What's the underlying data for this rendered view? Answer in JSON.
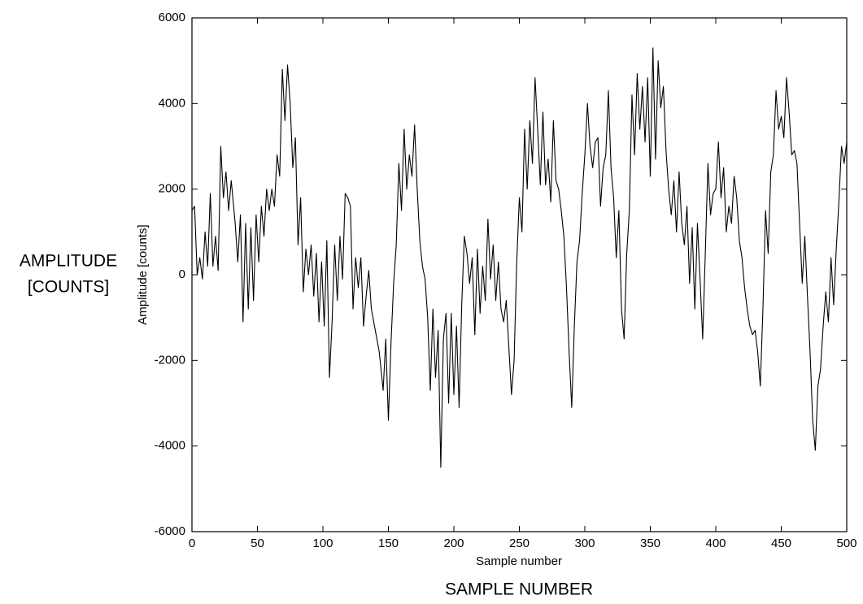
{
  "chart_data": {
    "type": "line",
    "x_label": "Sample number",
    "y_label": "Amplitude [counts]",
    "annotations": [
      "AMPLITUDE",
      "[COUNTS]",
      "SAMPLE NUMBER"
    ],
    "xlim": [
      0,
      500
    ],
    "ylim": [
      -6000,
      6000
    ],
    "xticks": [
      0,
      50,
      100,
      150,
      200,
      250,
      300,
      350,
      400,
      450,
      500
    ],
    "yticks": [
      -6000,
      -4000,
      -2000,
      0,
      2000,
      4000,
      6000
    ],
    "grid": false,
    "series": [
      {
        "color": "#000000",
        "x": [
          0,
          2,
          4,
          6,
          8,
          10,
          12,
          14,
          16,
          18,
          20,
          22,
          24,
          26,
          28,
          30,
          33,
          35,
          37,
          39,
          41,
          43,
          45,
          47,
          49,
          51,
          53,
          55,
          57,
          59,
          61,
          63,
          65,
          67,
          69,
          71,
          73,
          75,
          77,
          79,
          81,
          83,
          85,
          87,
          89,
          91,
          93,
          95,
          97,
          99,
          101,
          103,
          105,
          107,
          109,
          111,
          113,
          115,
          117,
          119,
          121,
          123,
          125,
          127,
          129,
          131,
          133,
          135,
          137,
          140,
          143,
          146,
          148,
          150,
          152,
          154,
          156,
          158,
          160,
          162,
          164,
          166,
          168,
          170,
          172,
          174,
          176,
          178,
          180,
          182,
          184,
          186,
          188,
          190,
          192,
          194,
          196,
          198,
          200,
          202,
          204,
          206,
          208,
          210,
          212,
          214,
          216,
          218,
          220,
          222,
          224,
          226,
          228,
          230,
          232,
          234,
          236,
          238,
          240,
          242,
          244,
          246,
          248,
          250,
          252,
          254,
          256,
          258,
          260,
          262,
          264,
          266,
          268,
          270,
          272,
          274,
          276,
          278,
          280,
          282,
          284,
          286,
          288,
          290,
          292,
          294,
          296,
          298,
          300,
          302,
          304,
          306,
          308,
          310,
          312,
          314,
          316,
          318,
          320,
          322,
          324,
          326,
          328,
          330,
          332,
          334,
          336,
          338,
          340,
          342,
          344,
          346,
          348,
          350,
          352,
          354,
          356,
          358,
          360,
          362,
          364,
          366,
          368,
          370,
          372,
          374,
          376,
          378,
          380,
          382,
          384,
          386,
          388,
          390,
          392,
          394,
          396,
          398,
          400,
          402,
          404,
          406,
          408,
          410,
          412,
          414,
          416,
          418,
          420,
          422,
          424,
          426,
          428,
          430,
          432,
          434,
          436,
          438,
          440,
          442,
          444,
          446,
          448,
          450,
          452,
          454,
          456,
          458,
          460,
          462,
          464,
          466,
          468,
          470,
          472,
          474,
          476,
          478,
          480,
          482,
          484,
          486,
          488,
          490,
          492,
          494,
          496,
          498,
          500
        ],
        "values": [
          1500,
          1600,
          0,
          400,
          -100,
          1000,
          200,
          1900,
          200,
          900,
          100,
          3000,
          1800,
          2400,
          1500,
          2200,
          1200,
          300,
          1400,
          -1100,
          1200,
          -800,
          1100,
          -600,
          1400,
          300,
          1600,
          900,
          2000,
          1500,
          2000,
          1600,
          2800,
          2300,
          4800,
          3600,
          4900,
          4000,
          2500,
          3200,
          700,
          1800,
          -400,
          600,
          0,
          700,
          -500,
          500,
          -1100,
          300,
          -1200,
          800,
          -2400,
          -1100,
          700,
          -600,
          900,
          -100,
          1900,
          1800,
          1600,
          -800,
          400,
          -300,
          400,
          -1200,
          -500,
          100,
          -800,
          -1300,
          -1800,
          -2700,
          -1500,
          -3400,
          -1600,
          -200,
          700,
          2600,
          1500,
          3400,
          2000,
          2800,
          2300,
          3500,
          2000,
          800,
          200,
          -100,
          -1000,
          -2700,
          -800,
          -2400,
          -1300,
          -4500,
          -1500,
          -900,
          -3000,
          -900,
          -2800,
          -1200,
          -3100,
          -700,
          900,
          500,
          -200,
          400,
          -1400,
          600,
          -900,
          200,
          -600,
          1300,
          -100,
          700,
          -600,
          300,
          -800,
          -1100,
          -600,
          -1700,
          -2800,
          -2000,
          300,
          1800,
          1000,
          3400,
          2000,
          3600,
          2600,
          4600,
          3400,
          2100,
          3800,
          2100,
          2700,
          1700,
          3600,
          2200,
          2000,
          1500,
          900,
          -300,
          -1800,
          -3100,
          -1200,
          300,
          800,
          1900,
          2800,
          4000,
          3000,
          2500,
          3100,
          3200,
          1600,
          2500,
          2800,
          4300,
          2500,
          1800,
          400,
          1500,
          -800,
          -1500,
          500,
          1500,
          4200,
          2800,
          4700,
          3400,
          4400,
          3100,
          4600,
          2300,
          5300,
          2700,
          5000,
          3900,
          4400,
          2900,
          2000,
          1400,
          2200,
          1000,
          2400,
          1200,
          700,
          1600,
          -200,
          1100,
          -800,
          1200,
          -100,
          -1500,
          500,
          2600,
          1400,
          1900,
          2000,
          3100,
          1800,
          2500,
          1000,
          1600,
          1200,
          2300,
          1800,
          800,
          400,
          -300,
          -800,
          -1200,
          -1400,
          -1300,
          -1800,
          -2600,
          -800,
          1500,
          500,
          2400,
          2800,
          4300,
          3400,
          3700,
          3200,
          4600,
          3800,
          2800,
          2900,
          2600,
          1200,
          -200,
          900,
          -500,
          -1800,
          -3400,
          -4100,
          -2600,
          -2200,
          -1200,
          -400,
          -1100,
          400,
          -700,
          600,
          1700,
          3000,
          2600,
          3100
        ]
      }
    ]
  }
}
